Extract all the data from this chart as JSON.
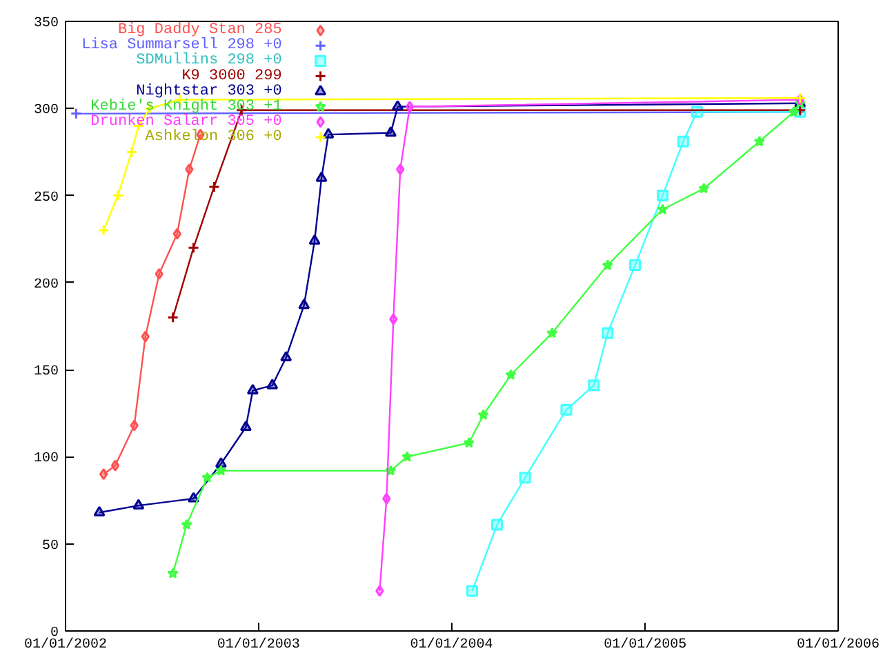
{
  "chart_data": {
    "type": "line",
    "xlim": [
      "2002-01-01",
      "2006-01-01"
    ],
    "ylim": [
      0,
      350
    ],
    "xticks": [
      {
        "value": "2002-01-01",
        "label": "01/01/2002"
      },
      {
        "value": "2003-01-01",
        "label": "01/01/2003"
      },
      {
        "value": "2004-01-01",
        "label": "01/01/2004"
      },
      {
        "value": "2005-01-01",
        "label": "01/01/2005"
      },
      {
        "value": "2006-01-01",
        "label": "01/01/2006"
      }
    ],
    "yticks": [
      0,
      50,
      100,
      150,
      200,
      250,
      300,
      350
    ],
    "grid": false,
    "legend": "top left",
    "line_style": "solid",
    "series": [
      {
        "name": "Big Daddy Stan 285",
        "color": "#ff5050",
        "marker": "diamond",
        "x": [
          "2002-03-14",
          "2002-04-05",
          "2002-05-11",
          "2002-06-01",
          "2002-06-27",
          "2002-07-31",
          "2002-08-23",
          "2002-09-13"
        ],
        "values": [
          90,
          95,
          118,
          169,
          205,
          228,
          265,
          285
        ]
      },
      {
        "name": "Lisa Summarsell 298 +0",
        "color": "#6060ff",
        "marker": "cross",
        "x": [
          "2002-01-21",
          "2005-10-21"
        ],
        "values": [
          297,
          298
        ]
      },
      {
        "name": "SDMullins 298 +0",
        "color": "#40ffff",
        "marker": "square",
        "x": [
          "2004-02-09",
          "2004-03-27",
          "2004-05-19",
          "2004-08-05",
          "2004-09-26",
          "2004-10-22",
          "2004-12-13",
          "2005-02-03",
          "2005-03-14",
          "2005-04-09",
          "2005-10-21"
        ],
        "values": [
          23,
          61,
          88,
          127,
          141,
          171,
          210,
          250,
          281,
          298,
          298
        ]
      },
      {
        "name": "K9 3000 299",
        "color": "#a00000",
        "marker": "cross",
        "x": [
          "2002-07-23",
          "2002-08-31",
          "2002-10-09",
          "2002-11-30",
          "2005-10-21"
        ],
        "values": [
          180,
          220,
          255,
          299,
          299
        ]
      },
      {
        "name": "Nightstar 303 +0",
        "color": "#000090",
        "marker": "triangle",
        "x": [
          "2002-03-06",
          "2002-05-19",
          "2002-08-31",
          "2002-10-22",
          "2002-12-08",
          "2002-12-21",
          "2003-01-27",
          "2003-02-22",
          "2003-03-28",
          "2003-04-17",
          "2003-04-30",
          "2003-05-13",
          "2003-09-08",
          "2003-09-21",
          "2005-10-21"
        ],
        "values": [
          68,
          72,
          76,
          96,
          117,
          138,
          141,
          157,
          187,
          224,
          260,
          285,
          286,
          301,
          303
        ]
      },
      {
        "name": "Kebie's Knight 303 +1",
        "color": "#40ff40",
        "marker": "star",
        "x": [
          "2002-07-23",
          "2002-08-18",
          "2002-09-26",
          "2002-10-22",
          "2003-09-08",
          "2003-10-09",
          "2004-02-03",
          "2004-03-01",
          "2004-04-22",
          "2004-07-09",
          "2004-10-22",
          "2005-02-03",
          "2005-04-22",
          "2005-08-05",
          "2005-10-09",
          "2005-10-21"
        ],
        "values": [
          33,
          61,
          88,
          92,
          92,
          100,
          108,
          124,
          147,
          171,
          210,
          242,
          254,
          281,
          298,
          303
        ]
      },
      {
        "name": "Drunken Salarr 305 +0",
        "color": "#ff40ff",
        "marker": "diamond",
        "x": [
          "2003-08-18",
          "2003-08-31",
          "2003-09-13",
          "2003-09-26",
          "2003-10-14",
          "2005-10-21"
        ],
        "values": [
          23,
          76,
          179,
          265,
          301,
          305
        ]
      },
      {
        "name": "Ashkelon 306 +0",
        "color": "#ffff00",
        "marker": "cross",
        "x": [
          "2002-03-14",
          "2002-04-10",
          "2002-05-06",
          "2002-05-19",
          "2002-06-09",
          "2002-08-05",
          "2005-10-21"
        ],
        "values": [
          230,
          250,
          275,
          290,
          300,
          305,
          306
        ]
      }
    ]
  }
}
